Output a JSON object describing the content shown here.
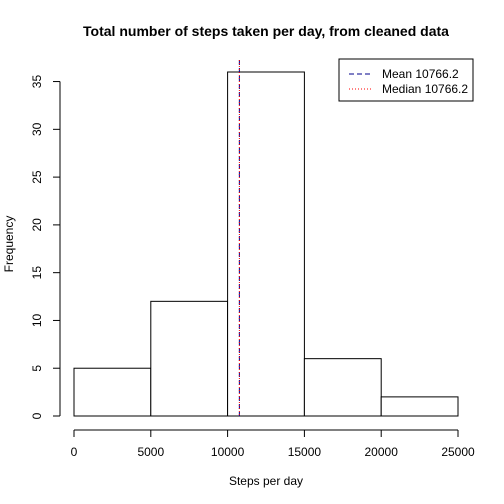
{
  "chart_data": {
    "type": "bar",
    "subtype": "histogram",
    "title": "Total number of steps taken per day, from cleaned data",
    "xlabel": "Steps per day",
    "ylabel": "Frequency",
    "bins": [
      {
        "from": 0,
        "to": 5000,
        "count": 5
      },
      {
        "from": 5000,
        "to": 10000,
        "count": 12
      },
      {
        "from": 10000,
        "to": 15000,
        "count": 36
      },
      {
        "from": 15000,
        "to": 20000,
        "count": 6
      },
      {
        "from": 20000,
        "to": 25000,
        "count": 2
      }
    ],
    "xlim": [
      0,
      25000
    ],
    "ylim": [
      0,
      36
    ],
    "x_ticks": [
      0,
      5000,
      10000,
      15000,
      20000,
      25000
    ],
    "y_ticks": [
      0,
      5,
      10,
      15,
      20,
      25,
      30,
      35
    ],
    "vlines": [
      {
        "label": "Mean 10766.2",
        "value": 10766.2,
        "color": "#00008b",
        "style": "dashed"
      },
      {
        "label": "Median 10766.2",
        "value": 10766.2,
        "color": "#ff0000",
        "style": "dotted"
      }
    ],
    "bar_fill": "#ffffff",
    "bar_stroke": "#000000",
    "grid": false,
    "legend_position": "top-right"
  }
}
